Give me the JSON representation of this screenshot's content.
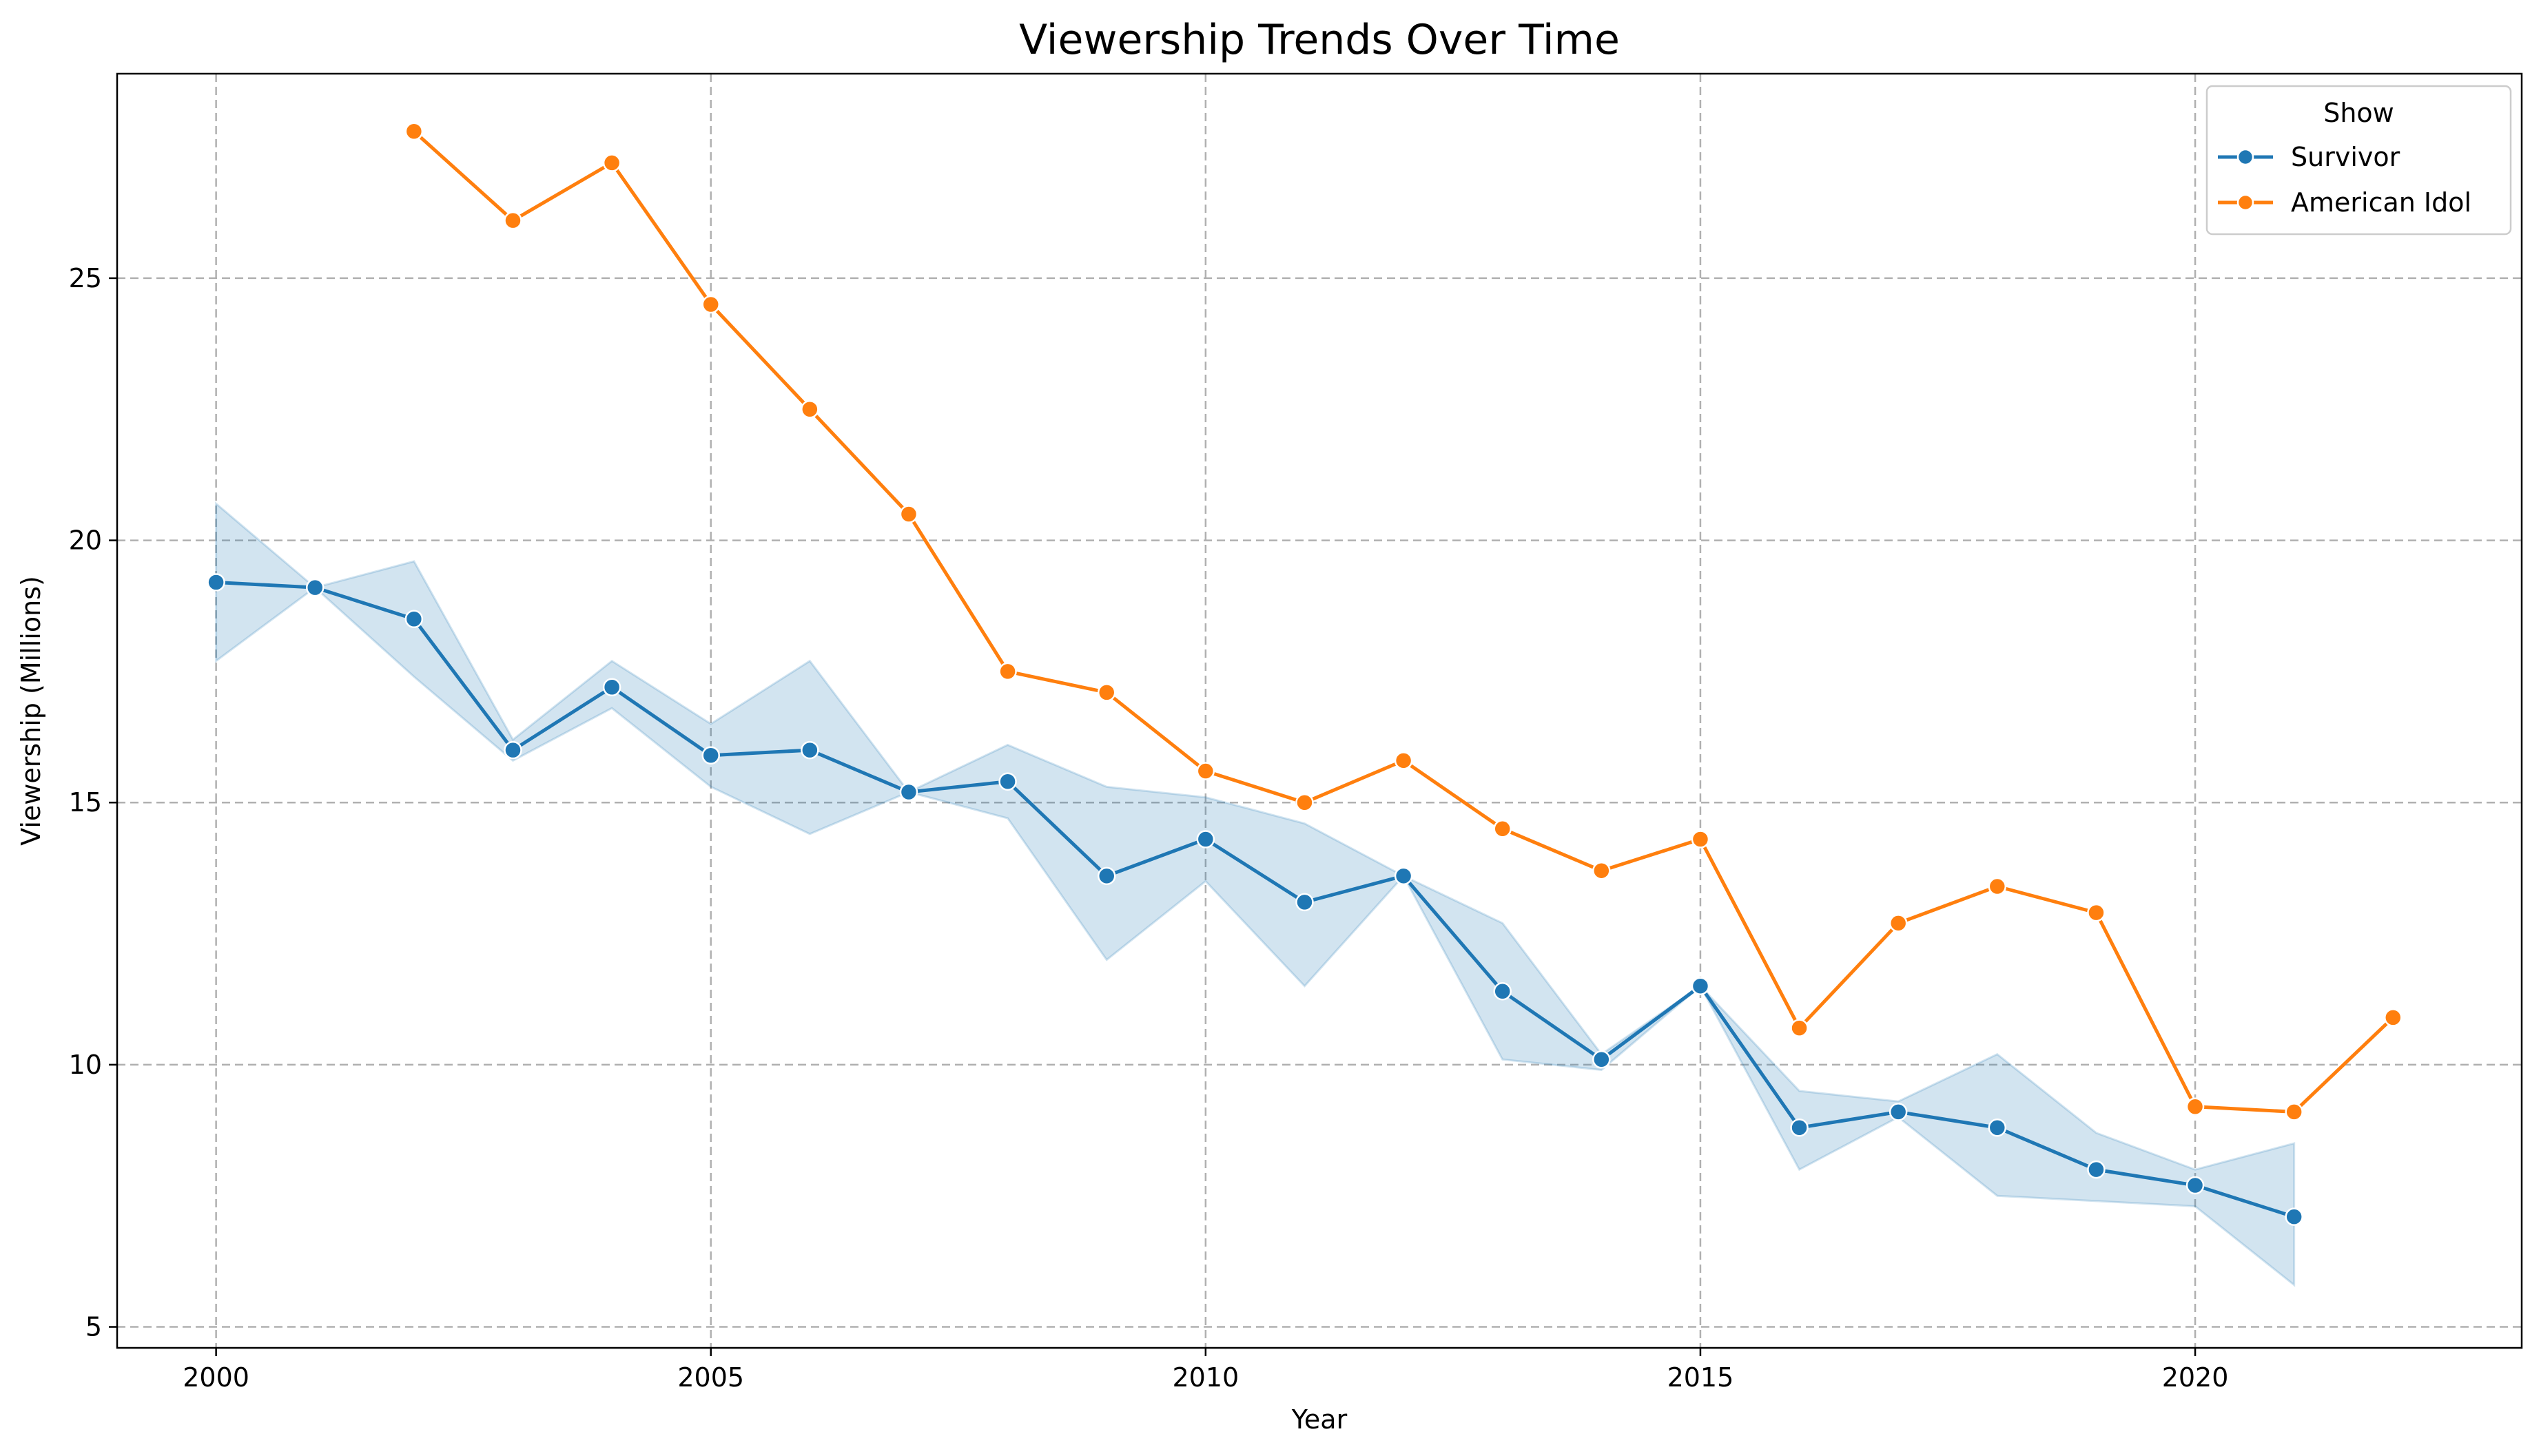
{
  "chart_data": {
    "type": "line",
    "title": "Viewership Trends Over Time",
    "xlabel": "Year",
    "ylabel": "Viewership (Millions)",
    "xlim": [
      1999,
      2023.3
    ],
    "ylim": [
      4.6,
      28.9
    ],
    "xticks": [
      2000,
      2005,
      2010,
      2015,
      2020
    ],
    "yticks": [
      5,
      10,
      15,
      20,
      25
    ],
    "grid": true,
    "legend": {
      "title": "Show",
      "position": "top-right"
    },
    "series": [
      {
        "name": "Survivor",
        "color": "#1f77b4",
        "x": [
          2000,
          2001,
          2002,
          2003,
          2004,
          2005,
          2006,
          2007,
          2008,
          2009,
          2010,
          2011,
          2012,
          2013,
          2014,
          2015,
          2016,
          2017,
          2018,
          2019,
          2020,
          2021
        ],
        "y": [
          19.2,
          19.1,
          18.5,
          16.0,
          17.2,
          15.9,
          16.0,
          15.2,
          15.4,
          13.6,
          14.3,
          13.1,
          13.6,
          11.4,
          10.1,
          11.5,
          8.8,
          9.1,
          8.8,
          8.0,
          7.7,
          7.1
        ],
        "ci_low": [
          17.7,
          19.1,
          17.4,
          15.8,
          16.8,
          15.3,
          14.4,
          15.2,
          14.7,
          12.0,
          13.5,
          11.5,
          13.6,
          10.1,
          9.9,
          11.5,
          8.0,
          9.0,
          7.5,
          7.4,
          7.3,
          5.8
        ],
        "ci_high": [
          20.7,
          19.1,
          19.6,
          16.2,
          17.7,
          16.5,
          17.7,
          15.2,
          16.1,
          15.3,
          15.1,
          14.6,
          13.6,
          12.7,
          10.2,
          11.5,
          9.5,
          9.3,
          10.2,
          8.7,
          8.0,
          8.5
        ]
      },
      {
        "name": "American Idol",
        "color": "#ff7f0e",
        "x": [
          2002,
          2003,
          2004,
          2005,
          2006,
          2007,
          2008,
          2009,
          2010,
          2011,
          2012,
          2013,
          2014,
          2015,
          2016,
          2017,
          2018,
          2019,
          2020,
          2021,
          2022
        ],
        "y": [
          27.8,
          26.1,
          27.2,
          24.5,
          22.5,
          20.5,
          17.5,
          17.1,
          15.6,
          15.0,
          15.8,
          14.5,
          13.7,
          14.3,
          10.7,
          12.7,
          13.4,
          12.9,
          9.2,
          9.1,
          10.9
        ]
      }
    ]
  }
}
